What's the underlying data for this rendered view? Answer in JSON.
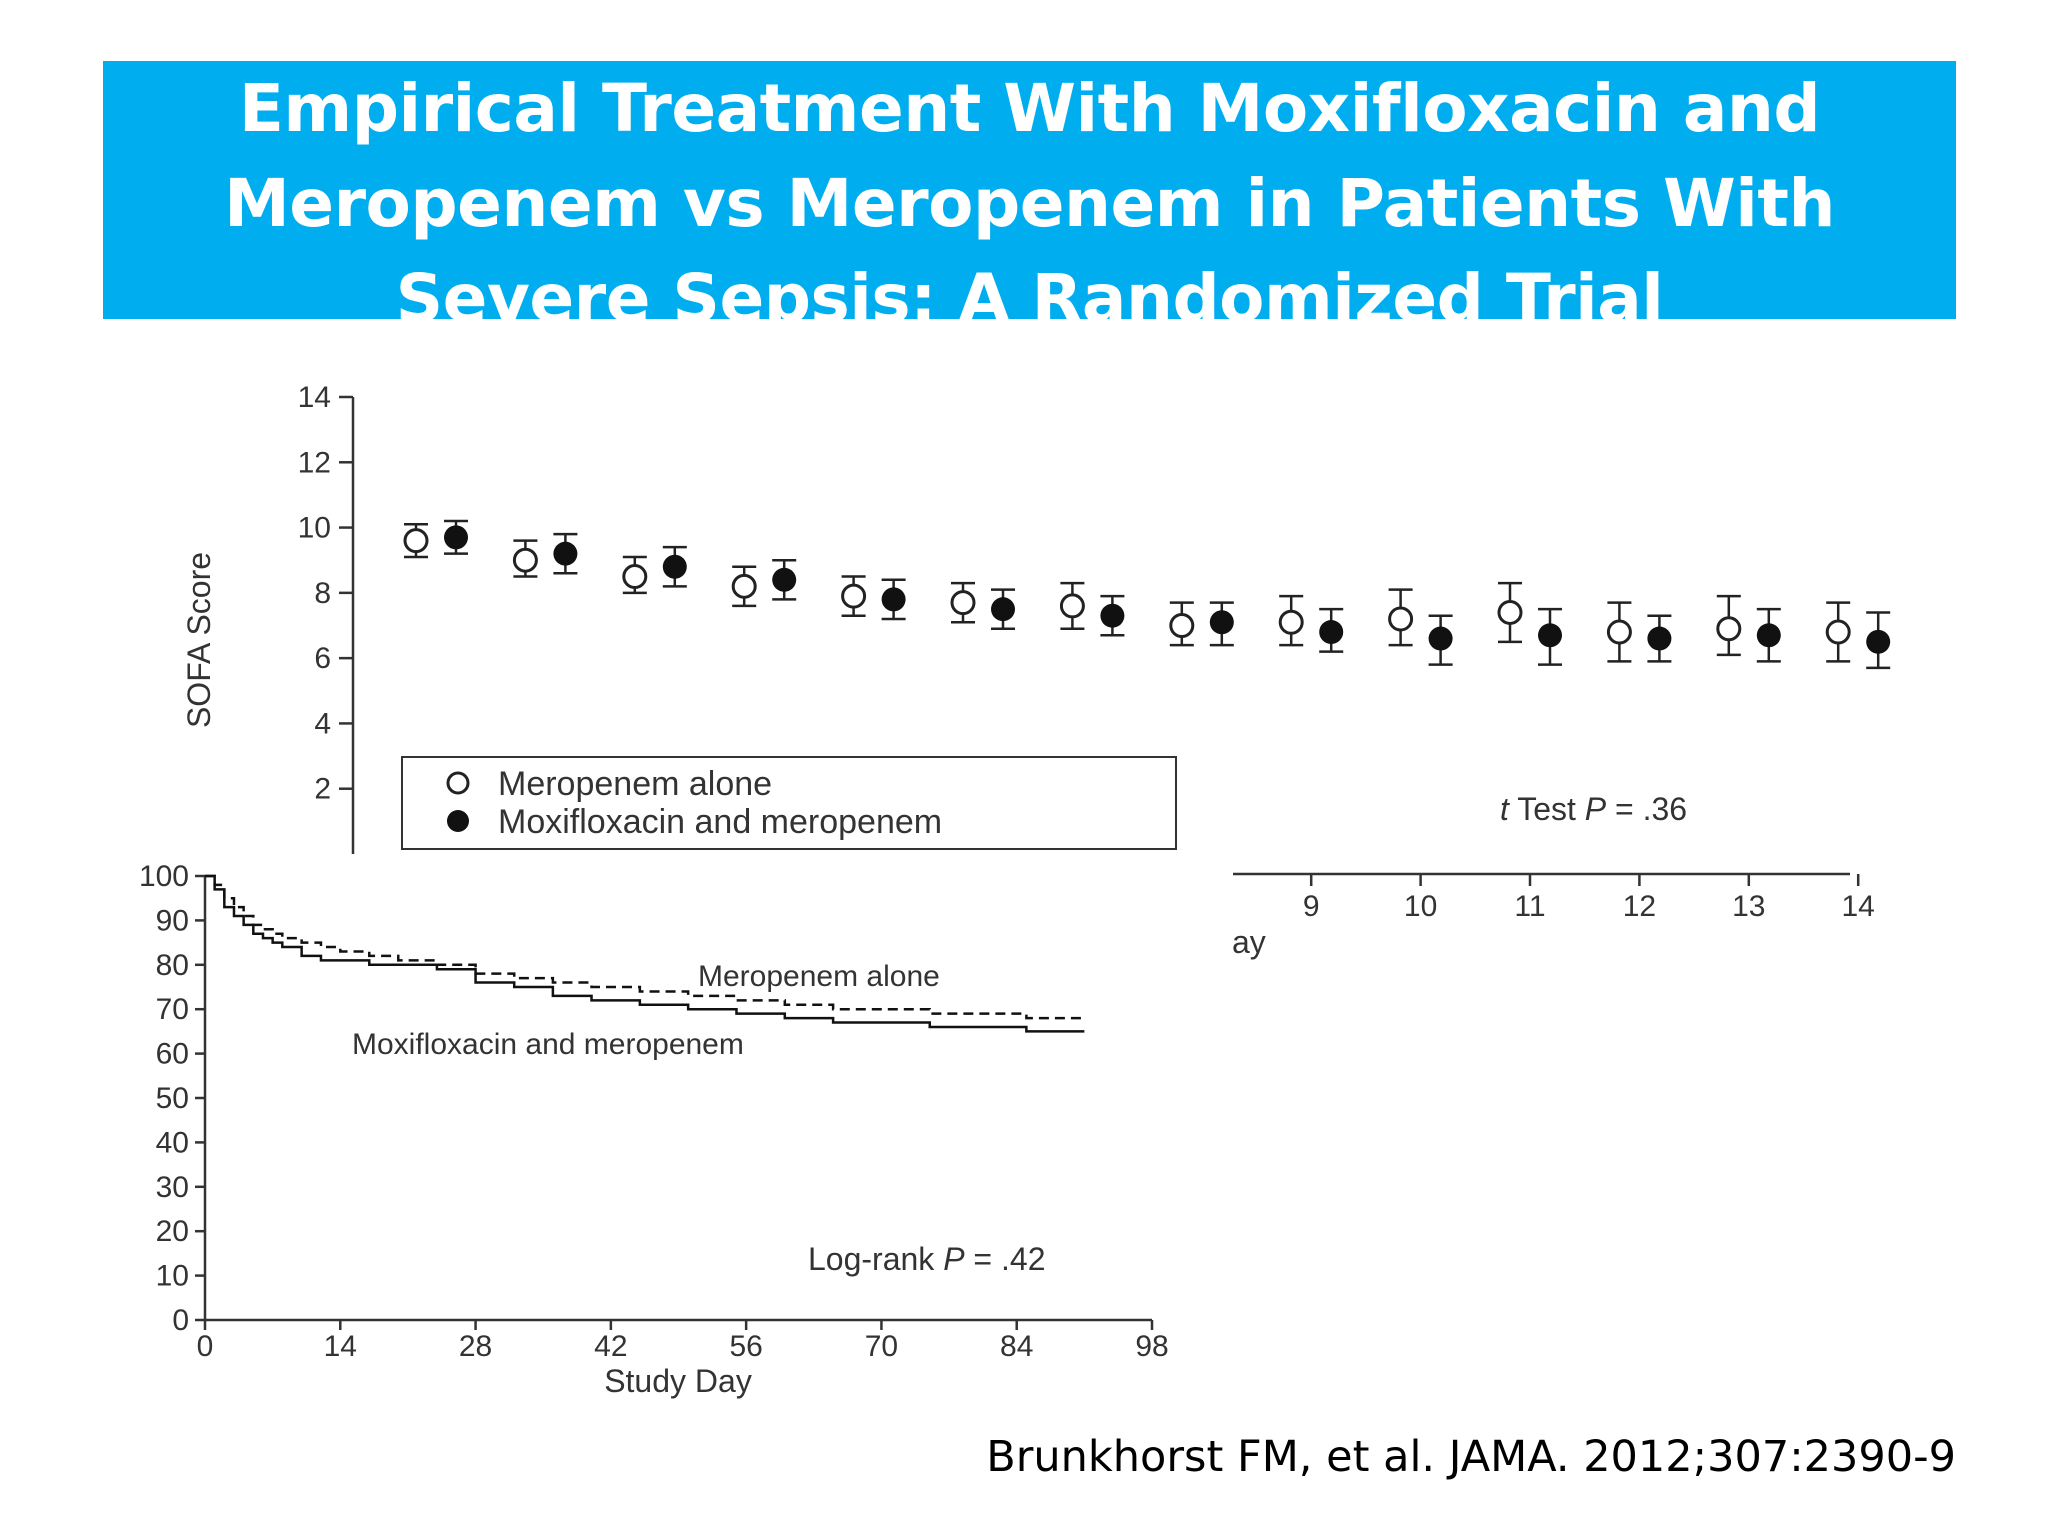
{
  "slide": {
    "title": "Empirical Treatment With Moxifloxacin and Meropenem vs Meropenem in Patients With Severe Sepsis: A Randomized Trial",
    "citation": "Brunkhorst FM, et al. JAMA. 2012;307:2390-9",
    "banner_color": "#00aeef"
  },
  "chart_data": [
    {
      "type": "scatter",
      "ylabel": "SOFA Score",
      "xlabel_visible": "ay",
      "ylim": [
        0,
        14
      ],
      "y_ticks": [
        2,
        4,
        6,
        8,
        10,
        12,
        14
      ],
      "x_ticks_visible": [
        9,
        10,
        11,
        12,
        13,
        14
      ],
      "x": [
        1,
        2,
        3,
        4,
        5,
        6,
        7,
        8,
        9,
        10,
        11,
        12,
        13,
        14
      ],
      "series": [
        {
          "name": "Meropenem alone",
          "marker": "open-circle",
          "values": [
            9.6,
            9.0,
            8.5,
            8.2,
            7.9,
            7.7,
            7.6,
            7.0,
            7.1,
            7.2,
            7.4,
            6.8,
            6.9,
            6.8
          ],
          "lower": [
            9.1,
            8.5,
            8.0,
            7.6,
            7.3,
            7.1,
            6.9,
            6.4,
            6.4,
            6.4,
            6.5,
            5.9,
            6.1,
            5.9
          ],
          "upper": [
            10.1,
            9.6,
            9.1,
            8.8,
            8.5,
            8.3,
            8.3,
            7.7,
            7.9,
            8.1,
            8.3,
            7.7,
            7.9,
            7.7
          ]
        },
        {
          "name": "Moxifloxacin and meropenem",
          "marker": "filled-circle",
          "values": [
            9.7,
            9.2,
            8.8,
            8.4,
            7.8,
            7.5,
            7.3,
            7.1,
            6.8,
            6.6,
            6.7,
            6.6,
            6.7,
            6.5
          ],
          "lower": [
            9.2,
            8.6,
            8.2,
            7.8,
            7.2,
            6.9,
            6.7,
            6.4,
            6.2,
            5.8,
            5.8,
            5.9,
            5.9,
            5.7
          ],
          "upper": [
            10.2,
            9.8,
            9.4,
            9.0,
            8.4,
            8.1,
            7.9,
            7.7,
            7.5,
            7.3,
            7.5,
            7.3,
            7.5,
            7.4
          ]
        }
      ],
      "legend": [
        "Meropenem alone",
        "Moxifloxacin and meropenem"
      ],
      "annotation": {
        "italic": "t",
        "text1": " Test ",
        "italic2": "P",
        "text2": " = .36"
      }
    },
    {
      "type": "line",
      "xlabel": "Study Day",
      "xlim": [
        0,
        98
      ],
      "ylim": [
        0,
        100
      ],
      "x_ticks": [
        0,
        14,
        28,
        42,
        56,
        70,
        84,
        98
      ],
      "y_ticks": [
        0,
        10,
        20,
        30,
        40,
        50,
        60,
        70,
        80,
        90,
        100
      ],
      "series": [
        {
          "name": "Meropenem alone",
          "style": "dashed",
          "x": [
            0,
            1,
            2,
            3,
            4,
            5,
            6,
            7,
            8,
            10,
            12,
            14,
            17,
            20,
            24,
            28,
            32,
            36,
            40,
            45,
            50,
            55,
            60,
            65,
            70,
            75,
            80,
            85,
            91
          ],
          "values": [
            100,
            98,
            95,
            93,
            91,
            89,
            88,
            87,
            86,
            85,
            84,
            83,
            82,
            81,
            80,
            78,
            77,
            76,
            75,
            74,
            73,
            72,
            71,
            70,
            70,
            69,
            69,
            68,
            68
          ]
        },
        {
          "name": "Moxifloxacin and meropenem",
          "style": "solid",
          "x": [
            0,
            1,
            2,
            3,
            4,
            5,
            6,
            7,
            8,
            10,
            12,
            14,
            17,
            20,
            24,
            28,
            32,
            36,
            40,
            45,
            50,
            55,
            60,
            65,
            70,
            75,
            80,
            85,
            91
          ],
          "values": [
            100,
            97,
            93,
            91,
            89,
            87,
            86,
            85,
            84,
            82,
            81,
            81,
            80,
            80,
            79,
            76,
            75,
            73,
            72,
            71,
            70,
            69,
            68,
            67,
            67,
            66,
            66,
            65,
            65
          ]
        }
      ],
      "line_labels": [
        "Meropenem alone",
        "Moxifloxacin and meropenem"
      ],
      "annotation": {
        "text1": "Log-rank ",
        "italic": "P",
        "text2": " = .42"
      }
    }
  ]
}
